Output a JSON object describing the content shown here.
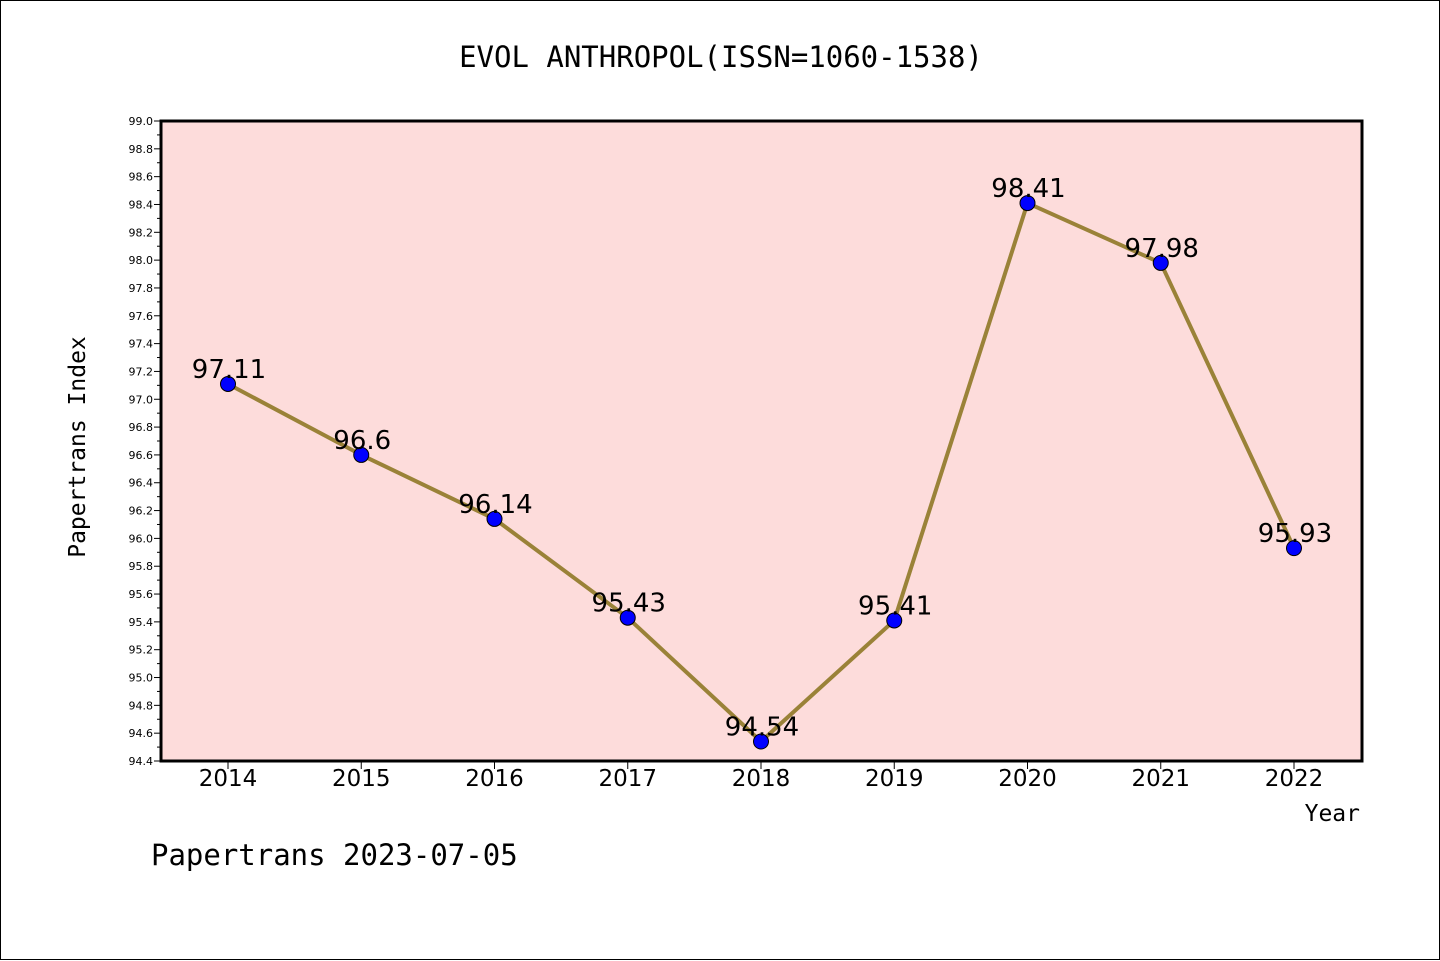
{
  "chart_data": {
    "type": "line",
    "title": "EVOL ANTHROPOL(ISSN=1060-1538)",
    "xlabel": "Year",
    "ylabel": "Papertrans Index",
    "categories": [
      "2014",
      "2015",
      "2016",
      "2017",
      "2018",
      "2019",
      "2020",
      "2021",
      "2022"
    ],
    "series": [
      {
        "values": [
          97.11,
          96.6,
          96.14,
          95.43,
          94.54,
          95.41,
          98.41,
          97.98,
          95.93
        ],
        "labels": [
          "97.11",
          "96.6",
          "96.14",
          "95.43",
          "94.54",
          "95.41",
          "98.41",
          "97.98",
          "95.93"
        ]
      }
    ],
    "ylim": [
      94.4,
      99.0
    ],
    "ytick_step": 0.2,
    "ytick_labels": [
      "94.4",
      "94.6",
      "94.8",
      "95.0",
      "95.2",
      "95.4",
      "95.6",
      "95.8",
      "96.0",
      "96.2",
      "96.4",
      "96.6",
      "96.8",
      "97.0",
      "97.2",
      "97.4",
      "97.6",
      "97.8",
      "98.0",
      "98.2",
      "98.4",
      "98.6",
      "98.8",
      "99.0"
    ],
    "grid": false,
    "colors": {
      "plot_background": "#fddcdb",
      "line": "#9a8238",
      "marker": "#0000ff"
    }
  },
  "footer": "Papertrans 2023-07-05"
}
